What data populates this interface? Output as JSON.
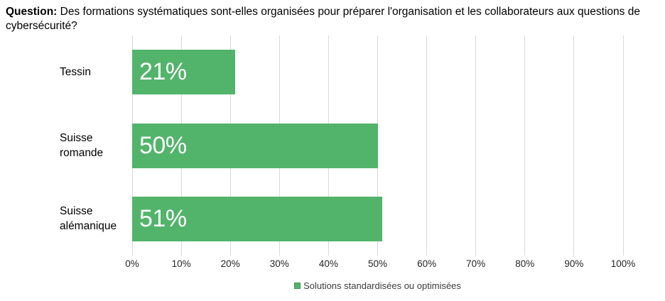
{
  "title": {
    "prefix": "Question:",
    "text": " Des formations systématiques sont-elles organisées pour préparer l'organisation et les collaborateurs aux questions de cybersécurité?"
  },
  "legend": {
    "label": "Solutions standardisées ou optimisées"
  },
  "colors": {
    "bar": "#52b46a",
    "bar_label": "#ffffff",
    "gridline": "#d9d9d9",
    "legend_swatch": "#52b46a",
    "legend_swatch_border": "#3f9456"
  },
  "chart_data": {
    "type": "bar",
    "orientation": "horizontal",
    "title": "Question: Des formations systématiques sont-elles organisées pour préparer l'organisation et les collaborateurs aux questions de cybersécurité?",
    "categories": [
      "Tessin",
      "Suisse romande",
      "Suisse alémanique"
    ],
    "series": [
      {
        "name": "Solutions standardisées ou optimisées",
        "values": [
          21,
          50,
          51
        ]
      }
    ],
    "value_labels": [
      "21%",
      "50%",
      "51%"
    ],
    "xlim": [
      0,
      100
    ],
    "x_ticks": [
      "0%",
      "10%",
      "20%",
      "30%",
      "40%",
      "50%",
      "60%",
      "70%",
      "80%",
      "90%",
      "100%"
    ],
    "grid": "vertical",
    "legend_position": "bottom-center",
    "bar_color": "#52b46a"
  }
}
